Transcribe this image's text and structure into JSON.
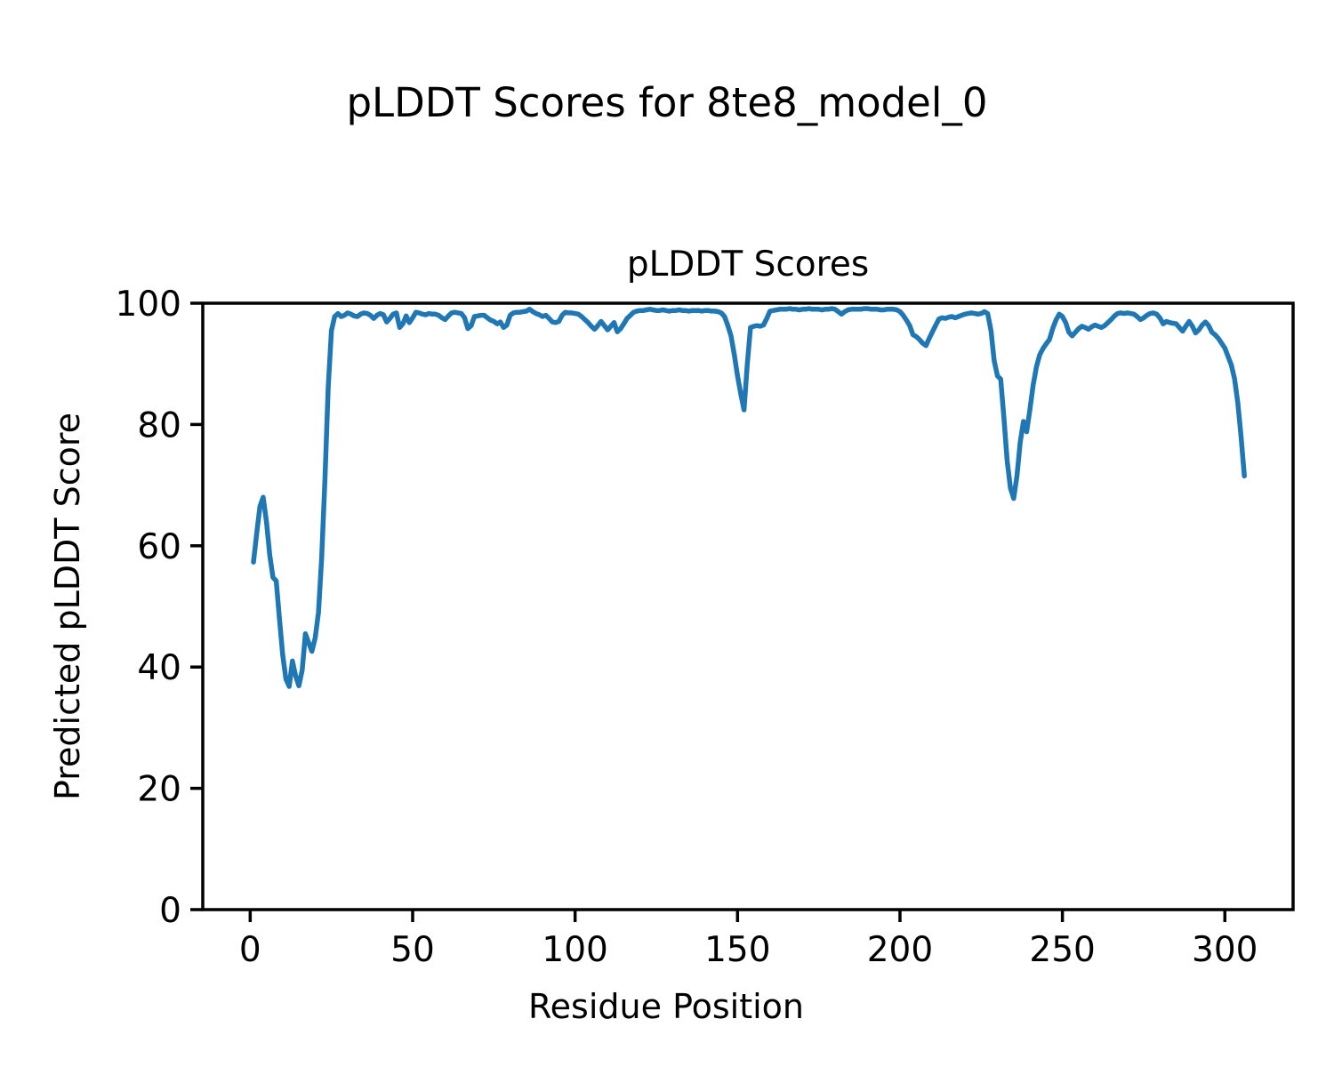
{
  "figure": {
    "suptitle": "pLDDT Scores for 8te8_model_0"
  },
  "chart_data": {
    "type": "line",
    "title": "pLDDT Scores",
    "xlabel": "Residue Position",
    "ylabel": "Predicted pLDDT Score",
    "grid": false,
    "legend_position": "none",
    "xlim": [
      -14.6,
      321.0
    ],
    "ylim": [
      0,
      100
    ],
    "xticks": [
      0,
      50,
      100,
      150,
      200,
      250,
      300
    ],
    "yticks": [
      0,
      20,
      40,
      60,
      80,
      100
    ],
    "x_start": 1,
    "x_step": 1,
    "series": [
      {
        "name": "pLDDT",
        "color": "#1f77b4",
        "values": [
          57.3,
          62.0,
          66.5,
          68.0,
          64.0,
          58.5,
          54.8,
          54.2,
          48.0,
          42.0,
          38.0,
          36.8,
          41.0,
          38.5,
          36.9,
          39.5,
          45.5,
          44.0,
          42.6,
          44.8,
          49.0,
          58.0,
          71.0,
          86.0,
          95.5,
          97.8,
          98.3,
          97.8,
          98.0,
          98.4,
          98.2,
          97.9,
          97.8,
          98.2,
          98.4,
          98.3,
          98.0,
          97.5,
          98.0,
          98.3,
          98.1,
          96.9,
          97.5,
          98.2,
          98.4,
          96.0,
          96.6,
          97.9,
          96.8,
          97.6,
          98.5,
          98.4,
          98.2,
          98.1,
          98.3,
          98.2,
          98.2,
          98.0,
          97.6,
          97.3,
          97.9,
          98.4,
          98.5,
          98.4,
          98.3,
          97.6,
          95.8,
          96.3,
          97.8,
          97.9,
          98.0,
          98.0,
          97.6,
          97.2,
          97.0,
          96.6,
          96.9,
          96.0,
          96.4,
          98.0,
          98.4,
          98.5,
          98.5,
          98.6,
          98.7,
          99.0,
          98.6,
          98.3,
          98.1,
          97.8,
          98.0,
          97.5,
          96.9,
          96.8,
          97.0,
          98.0,
          98.5,
          98.4,
          98.4,
          98.3,
          98.2,
          97.8,
          97.3,
          96.8,
          96.2,
          95.7,
          96.3,
          97.0,
          96.3,
          95.6,
          96.2,
          96.8,
          95.3,
          95.8,
          96.6,
          97.5,
          98.0,
          98.5,
          98.7,
          98.8,
          98.8,
          98.9,
          99.0,
          98.9,
          98.8,
          98.8,
          98.9,
          98.8,
          98.7,
          98.8,
          98.8,
          98.9,
          98.8,
          98.8,
          98.7,
          98.8,
          98.8,
          98.8,
          98.7,
          98.8,
          98.8,
          98.7,
          98.7,
          98.6,
          98.4,
          97.8,
          96.3,
          94.6,
          91.5,
          88.0,
          85.0,
          82.4,
          90.0,
          96.0,
          96.2,
          96.3,
          96.2,
          96.4,
          97.5,
          98.7,
          98.8,
          98.9,
          99.0,
          99.0,
          99.0,
          99.1,
          99.0,
          99.0,
          98.9,
          99.0,
          99.0,
          99.1,
          99.0,
          99.0,
          99.0,
          98.9,
          99.0,
          99.0,
          99.1,
          99.0,
          98.6,
          98.2,
          98.6,
          98.9,
          99.0,
          99.0,
          99.0,
          99.0,
          99.1,
          99.1,
          99.0,
          99.0,
          99.0,
          98.9,
          98.9,
          99.0,
          99.0,
          99.0,
          98.9,
          98.6,
          98.0,
          97.2,
          96.3,
          94.8,
          94.5,
          94.0,
          93.4,
          93.0,
          94.2,
          95.3,
          96.4,
          97.4,
          97.6,
          97.5,
          97.7,
          97.8,
          97.6,
          97.8,
          98.0,
          98.2,
          98.3,
          98.4,
          98.3,
          98.2,
          98.3,
          98.6,
          98.3,
          95.5,
          90.5,
          88.0,
          87.5,
          81.0,
          74.0,
          69.5,
          67.8,
          71.5,
          77.0,
          80.5,
          78.8,
          82.5,
          86.5,
          89.5,
          91.5,
          92.5,
          93.3,
          94.0,
          95.8,
          97.2,
          98.2,
          97.8,
          96.8,
          95.2,
          94.6,
          95.2,
          95.8,
          96.2,
          96.0,
          95.7,
          96.1,
          96.4,
          96.2,
          96.0,
          96.3,
          96.8,
          97.3,
          97.9,
          98.3,
          98.4,
          98.3,
          98.4,
          98.3,
          98.2,
          97.8,
          97.3,
          97.6,
          98.0,
          98.3,
          98.4,
          98.2,
          97.6,
          96.6,
          97.0,
          96.8,
          96.7,
          96.6,
          96.0,
          95.4,
          96.2,
          97.0,
          96.2,
          95.1,
          95.6,
          96.4,
          96.9,
          96.3,
          95.2,
          94.8,
          94.2,
          93.4,
          92.6,
          91.2,
          89.8,
          87.5,
          83.5,
          78.0,
          71.5
        ]
      }
    ]
  }
}
